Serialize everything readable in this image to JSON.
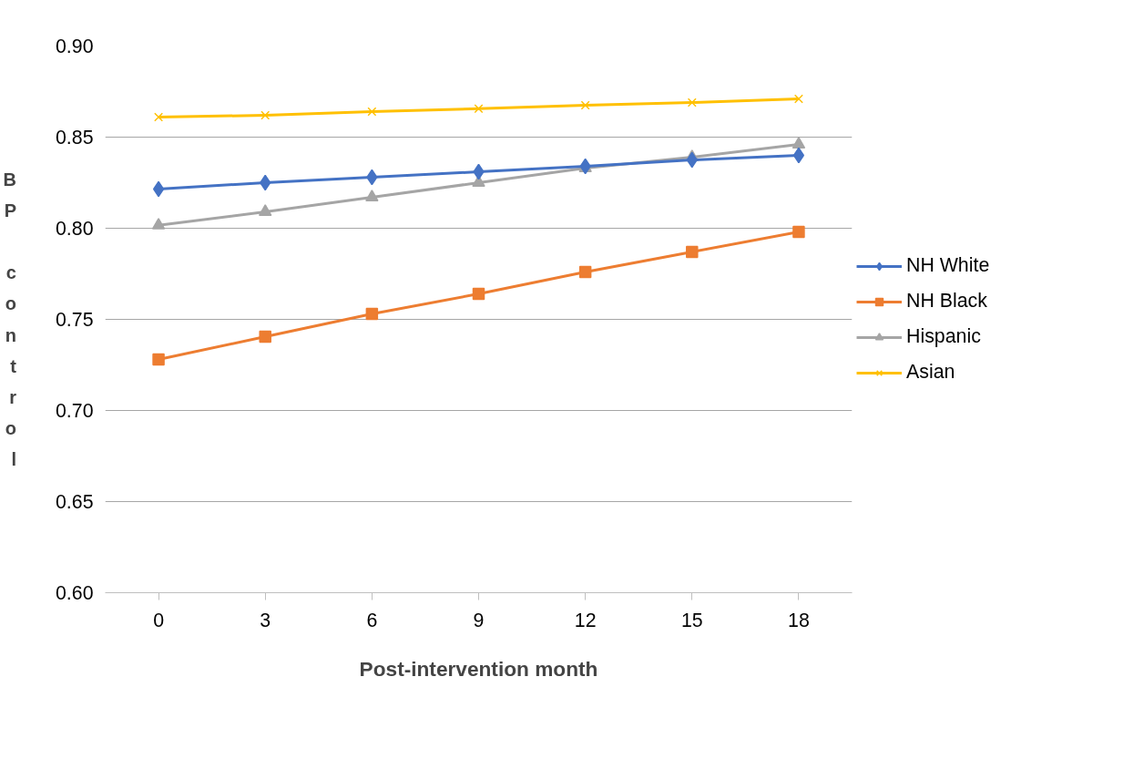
{
  "chart_data": {
    "type": "line",
    "xlabel": "Post-intervention month",
    "ylabel": "BP control",
    "categories": [
      "0",
      "3",
      "6",
      "9",
      "12",
      "15",
      "18"
    ],
    "ylim": [
      0.6,
      0.9
    ],
    "yticks": [
      {
        "value": 0.6,
        "label": "0.60"
      },
      {
        "value": 0.65,
        "label": "0.65"
      },
      {
        "value": 0.7,
        "label": "0.70"
      },
      {
        "value": 0.75,
        "label": "0.75"
      },
      {
        "value": 0.8,
        "label": "0.80"
      },
      {
        "value": 0.85,
        "label": "0.85"
      },
      {
        "value": 0.9,
        "label": "0.90"
      }
    ],
    "grid": "y",
    "legend": "right",
    "line_style": "solid",
    "series": [
      {
        "name": "NH White",
        "color": "#4472c4",
        "marker": "diamond",
        "values": [
          0.8215,
          0.825,
          0.828,
          0.831,
          0.834,
          0.8375,
          0.84
        ]
      },
      {
        "name": "NH Black",
        "color": "#ed7d31",
        "marker": "square",
        "values": [
          0.728,
          0.7405,
          0.753,
          0.764,
          0.776,
          0.787,
          0.798
        ]
      },
      {
        "name": "Hispanic",
        "color": "#a5a5a5",
        "marker": "triangle",
        "values": [
          0.8016,
          0.809,
          0.817,
          0.825,
          0.833,
          0.839,
          0.846
        ]
      },
      {
        "name": "Asian",
        "color": "#ffc000",
        "marker": "cross",
        "values": [
          0.861,
          0.862,
          0.864,
          0.8656,
          0.8675,
          0.869,
          0.871
        ]
      }
    ]
  }
}
